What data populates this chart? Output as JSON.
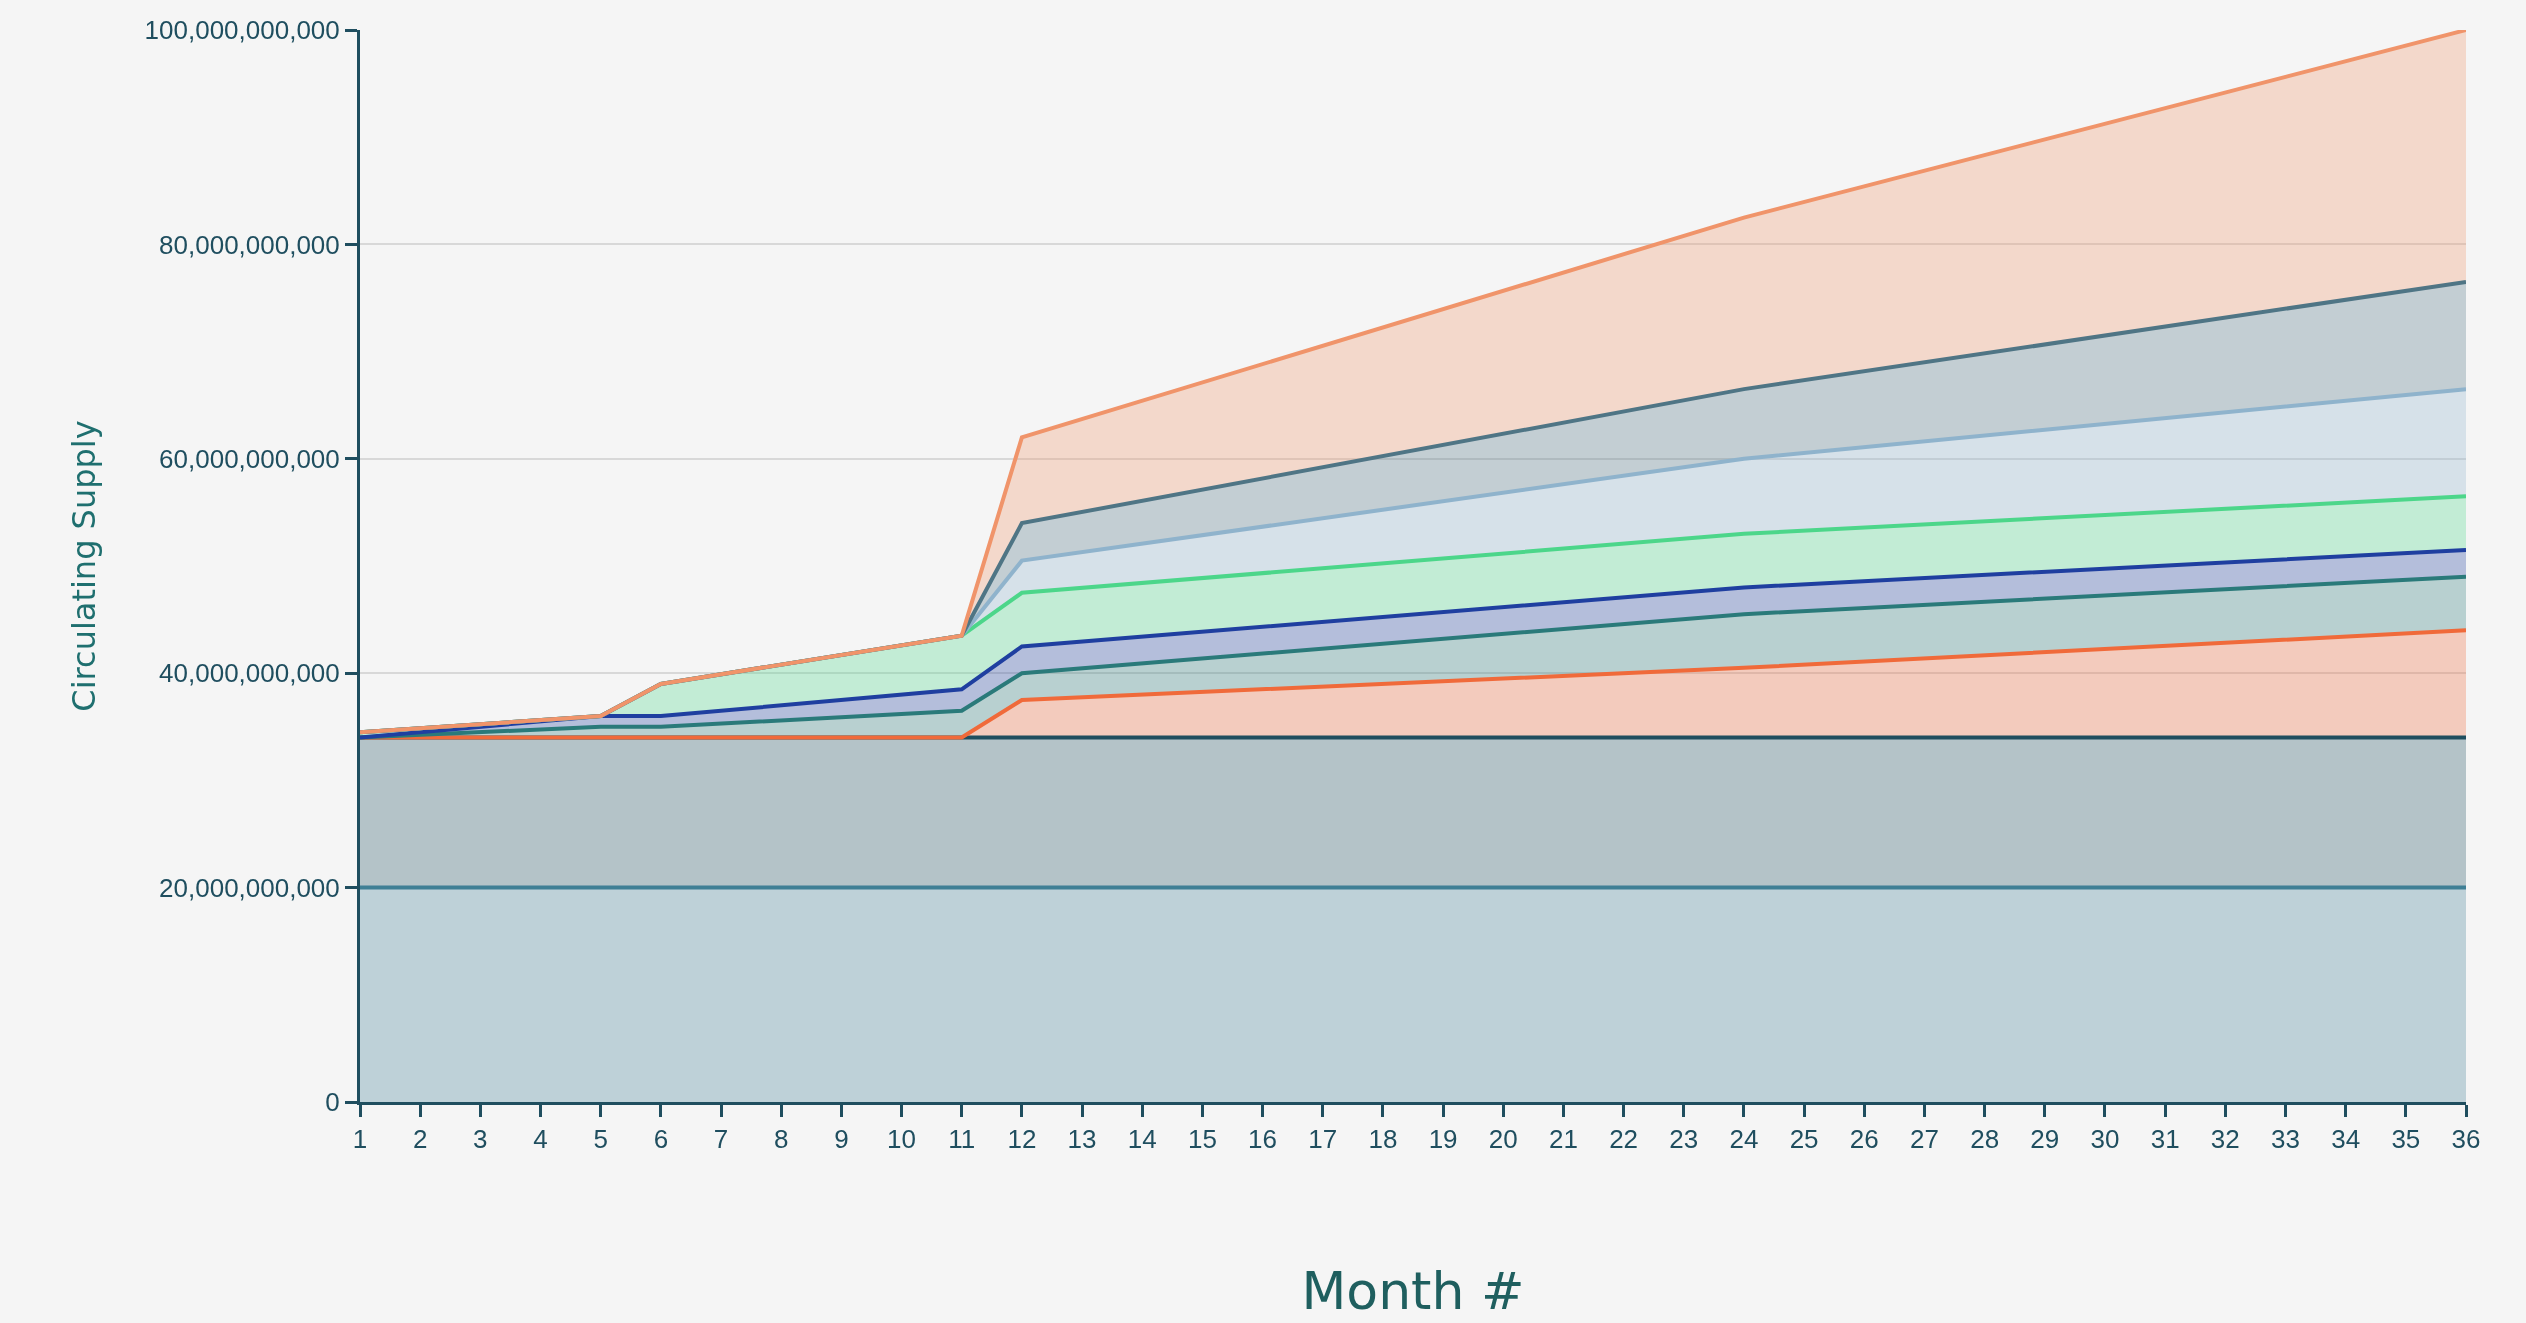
{
  "chart_data": {
    "type": "area",
    "stacked": true,
    "xlabel": "Month #",
    "ylabel": "Circulating Supply",
    "x": [
      1,
      5,
      6,
      11,
      12,
      24,
      36
    ],
    "xlim": [
      1,
      36
    ],
    "xticks": [
      1,
      2,
      3,
      4,
      5,
      6,
      7,
      8,
      9,
      10,
      11,
      12,
      13,
      14,
      15,
      16,
      17,
      18,
      19,
      20,
      21,
      22,
      23,
      24,
      25,
      26,
      27,
      28,
      29,
      30,
      31,
      32,
      33,
      34,
      35,
      36
    ],
    "ylim": [
      0,
      100000000000
    ],
    "yticks": [
      {
        "value": 0,
        "label": "0"
      },
      {
        "value": 20000000000,
        "label": "20,000,000,000"
      },
      {
        "value": 40000000000,
        "label": "40,000,000,000"
      },
      {
        "value": 60000000000,
        "label": "60,000,000,000"
      },
      {
        "value": 80000000000,
        "label": "80,000,000,000"
      },
      {
        "value": 100000000000,
        "label": "100,000,000,000"
      }
    ],
    "grid": "y",
    "series": [
      {
        "color": "#3f7f95",
        "values": [
          20000000000,
          20000000000,
          20000000000,
          20000000000,
          20000000000,
          20000000000,
          20000000000
        ]
      },
      {
        "color": "#1f4e5f",
        "values": [
          14000000000,
          14000000000,
          14000000000,
          14000000000,
          14000000000,
          14000000000,
          14000000000
        ]
      },
      {
        "color": "#f06a3a",
        "values": [
          0,
          0,
          0,
          0,
          3500000000,
          6500000000,
          10000000000
        ]
      },
      {
        "color": "#2a7a7a",
        "values": [
          0,
          1000000000,
          1000000000,
          2500000000,
          2500000000,
          5000000000,
          5000000000
        ]
      },
      {
        "color": "#1f3fa0",
        "values": [
          0,
          1000000000,
          1000000000,
          2000000000,
          2500000000,
          2500000000,
          2500000000
        ]
      },
      {
        "color": "#4cd68a",
        "values": [
          500000000,
          0,
          3000000000,
          5000000000,
          5000000000,
          5000000000,
          5000000000
        ]
      },
      {
        "color": "#8fb3cc",
        "values": [
          0,
          0,
          0,
          0,
          3000000000,
          7000000000,
          10000000000
        ]
      },
      {
        "color": "#4f7585",
        "values": [
          0,
          0,
          0,
          0,
          3500000000,
          6500000000,
          10000000000
        ]
      },
      {
        "color": "#f0946a",
        "values": [
          0,
          0,
          0,
          0,
          8000000000,
          16000000000,
          23500000000
        ]
      }
    ]
  }
}
